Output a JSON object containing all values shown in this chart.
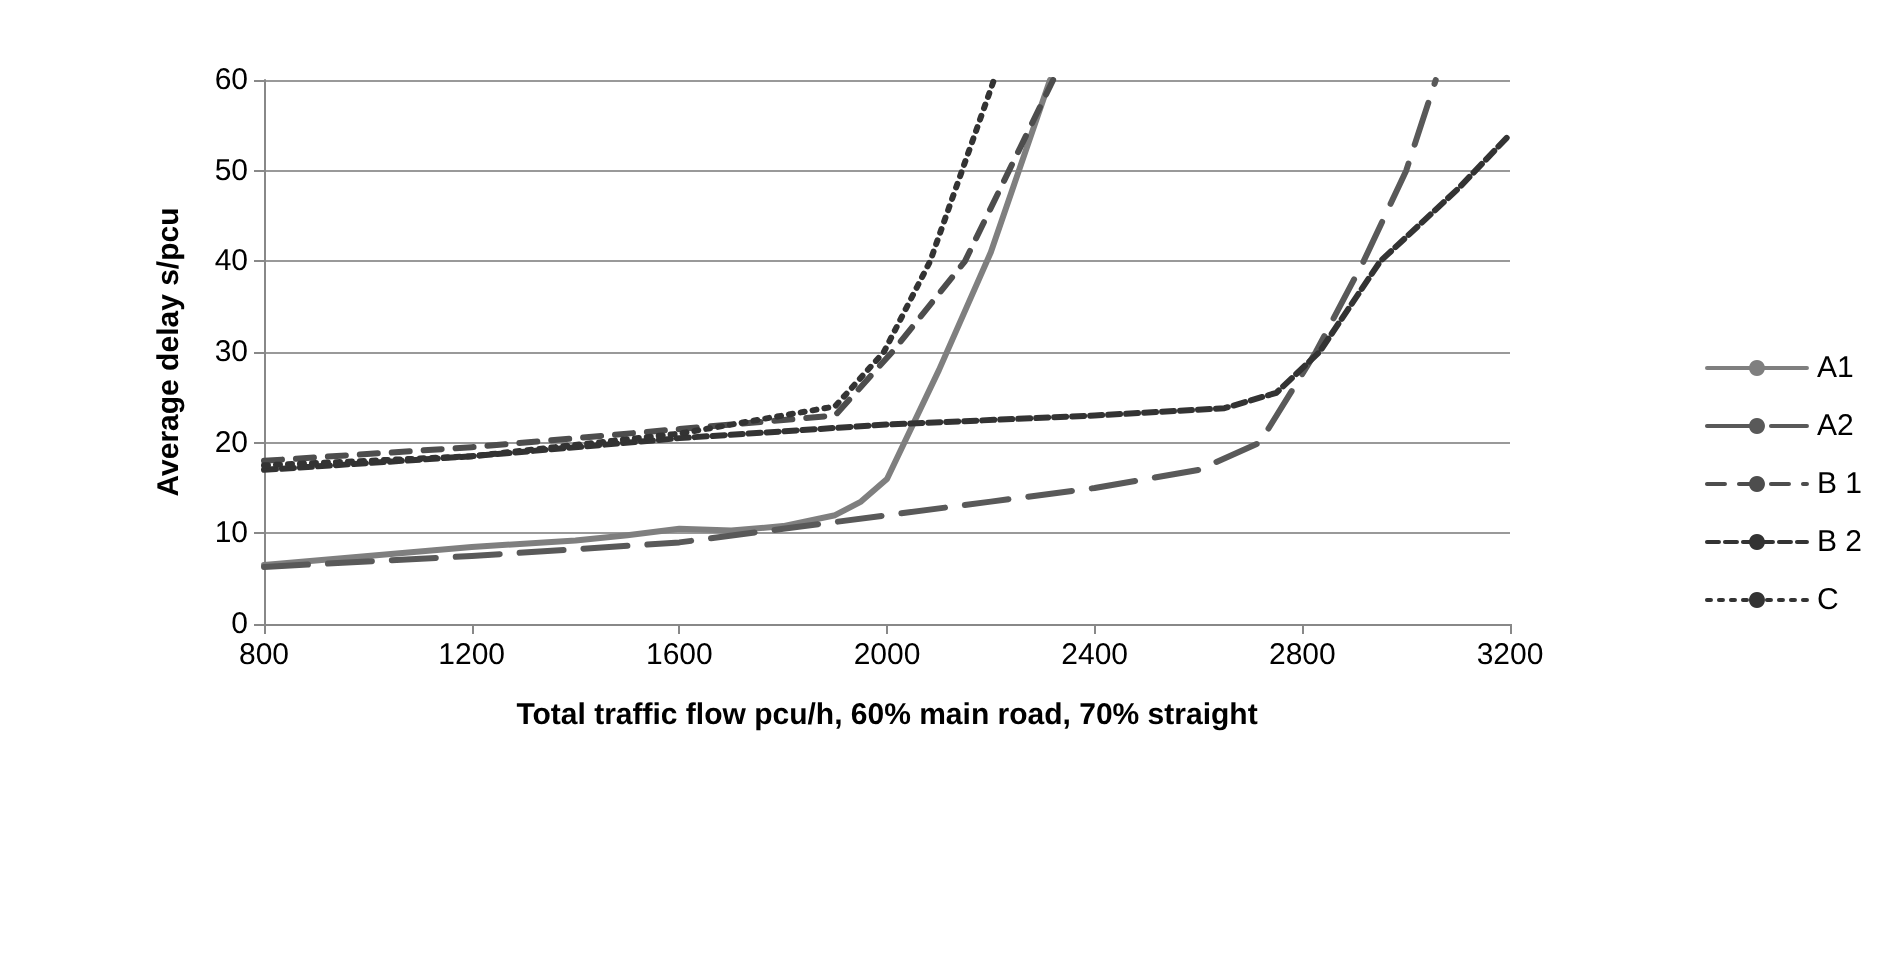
{
  "chart_data": {
    "type": "line",
    "xlabel": "Total traffic flow pcu/h, 60% main road, 70% straight",
    "ylabel": "Average delay s/pcu",
    "xlim": [
      800,
      3200
    ],
    "xticks": [
      800,
      1200,
      1600,
      2000,
      2400,
      2800,
      3200
    ],
    "ylim": [
      0,
      60
    ],
    "yticks": [
      0,
      10,
      20,
      30,
      40,
      50,
      60
    ],
    "grid": "y",
    "legend": "right",
    "marker": "none",
    "series": [
      {
        "name": "A1",
        "color": "#7f7f7f",
        "line_style": "solid",
        "x": [
          800,
          1000,
          1200,
          1400,
          1500,
          1600,
          1700,
          1800,
          1900,
          1950,
          2000,
          2100,
          2200,
          2314
        ],
        "values": [
          6.5,
          7.5,
          8.5,
          9.2,
          9.8,
          10.5,
          10.3,
          10.8,
          12,
          13.5,
          16,
          28,
          41,
          60
        ]
      },
      {
        "name": "A2",
        "color": "#595959",
        "line_style": "longdash",
        "x": [
          800,
          1200,
          1600,
          1800,
          2000,
          2200,
          2400,
          2600,
          2718,
          2826,
          2918,
          3000,
          3057
        ],
        "values": [
          6.3,
          7.5,
          9,
          10.5,
          12,
          13.5,
          15,
          17,
          20,
          30,
          40,
          50,
          60
        ]
      },
      {
        "name": "B 1",
        "color": "#4d4d4d",
        "line_style": "dashed",
        "x": [
          800,
          1200,
          1600,
          1900,
          2010,
          2150,
          2320
        ],
        "values": [
          18,
          19.5,
          21.5,
          23,
          30,
          40,
          60
        ]
      },
      {
        "name": "B 2",
        "color": "#333333",
        "line_style": "shortdash",
        "x": [
          800,
          1200,
          1600,
          2000,
          2400,
          2650,
          2750,
          2833,
          2950,
          3100,
          3200
        ],
        "values": [
          17,
          18.5,
          20.5,
          22,
          23,
          23.8,
          25.5,
          30,
          40,
          48,
          54
        ]
      },
      {
        "name": "C",
        "color": "#333333",
        "line_style": "dotted",
        "x": [
          800,
          1200,
          1600,
          1900,
          1994,
          2083,
          2206
        ],
        "values": [
          17.5,
          18.5,
          21,
          24,
          30,
          40,
          60
        ]
      }
    ]
  }
}
